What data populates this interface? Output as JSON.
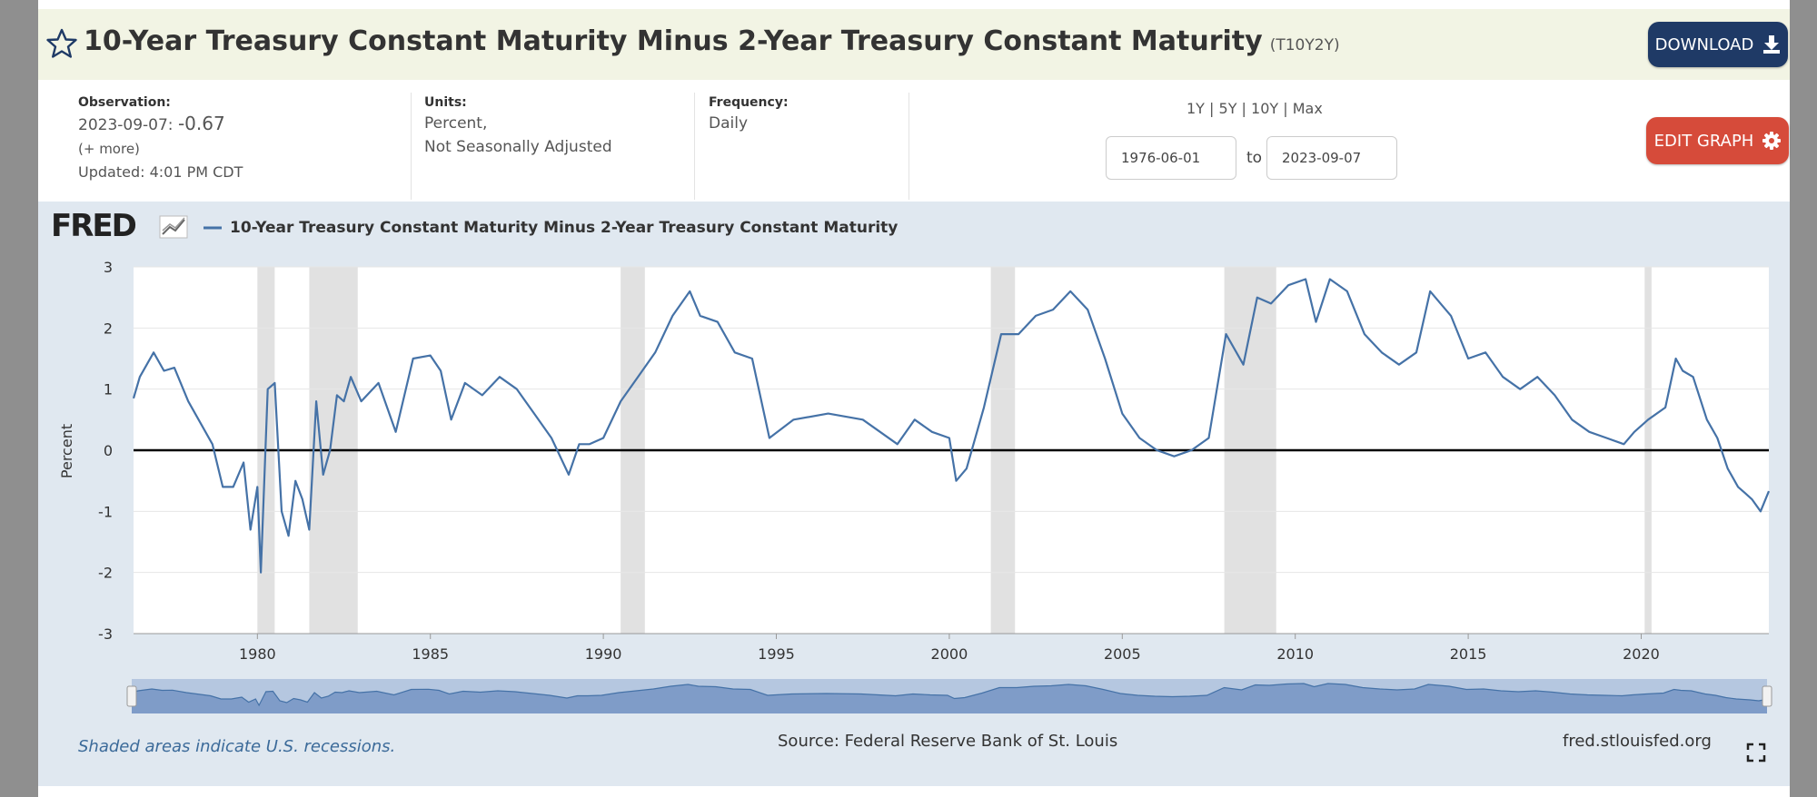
{
  "header": {
    "title": "10-Year Treasury Constant Maturity Minus 2-Year Treasury Constant Maturity",
    "series_id": "(T10Y2Y)",
    "download_label": "DOWNLOAD",
    "edit_label": "EDIT GRAPH"
  },
  "meta": {
    "observation_label": "Observation:",
    "observation_date": "2023-09-07:",
    "observation_value": "-0.67",
    "more_label": "(+ more)",
    "updated": "Updated: 4:01 PM CDT",
    "units_label": "Units:",
    "units_line1": "Percent,",
    "units_line2": "Not Seasonally Adjusted",
    "frequency_label": "Frequency:",
    "frequency_value": "Daily"
  },
  "range": {
    "presets": "1Y | 5Y | 10Y | Max",
    "start": "1976-06-01",
    "to_label": "to",
    "end": "2023-09-07"
  },
  "footer": {
    "note": "Shaded areas indicate U.S. recessions.",
    "source": "Source: Federal Reserve Bank of St. Louis",
    "site": "fred.stlouisfed.org"
  },
  "colors": {
    "line": "#4572a7",
    "recession": "#e1e1e1",
    "download_btn": "#1f3a66",
    "edit_btn": "#d64b3a"
  },
  "chart_data": {
    "type": "line",
    "logo": "FRED",
    "series": [
      {
        "name": "10-Year Treasury Constant Maturity Minus 2-Year Treasury Constant Maturity"
      }
    ],
    "ylabel": "Percent",
    "xlim": [
      1976.42,
      2023.69
    ],
    "ylim": [
      -3,
      3
    ],
    "yticks": [
      3,
      2,
      1,
      0,
      -1,
      -2,
      -3
    ],
    "xticks": [
      1980,
      1985,
      1990,
      1995,
      2000,
      2005,
      2010,
      2015,
      2020
    ],
    "zero_line": true,
    "legend_position": "top-left",
    "recessions": [
      [
        1980.0,
        1980.5
      ],
      [
        1981.5,
        1982.9
      ],
      [
        1990.5,
        1991.2
      ],
      [
        2001.2,
        2001.9
      ],
      [
        2007.95,
        2009.45
      ],
      [
        2020.1,
        2020.3
      ]
    ],
    "x": [
      1976.42,
      1976.6,
      1977.0,
      1977.3,
      1977.6,
      1978.0,
      1978.3,
      1978.7,
      1979.0,
      1979.3,
      1979.6,
      1979.8,
      1980.0,
      1980.1,
      1980.3,
      1980.5,
      1980.7,
      1980.9,
      1981.1,
      1981.3,
      1981.5,
      1981.7,
      1981.9,
      1982.1,
      1982.3,
      1982.5,
      1982.7,
      1983.0,
      1983.5,
      1984.0,
      1984.5,
      1985.0,
      1985.3,
      1985.6,
      1986.0,
      1986.5,
      1987.0,
      1987.5,
      1988.0,
      1988.5,
      1989.0,
      1989.3,
      1989.6,
      1990.0,
      1990.5,
      1991.0,
      1991.5,
      1992.0,
      1992.5,
      1992.8,
      1993.3,
      1993.8,
      1994.3,
      1994.8,
      1995.5,
      1996.5,
      1997.5,
      1998.5,
      1999.0,
      1999.5,
      2000.0,
      2000.2,
      2000.5,
      2001.0,
      2001.5,
      2002.0,
      2002.5,
      2003.0,
      2003.5,
      2004.0,
      2004.5,
      2005.0,
      2005.5,
      2006.0,
      2006.5,
      2007.0,
      2007.5,
      2008.0,
      2008.5,
      2008.9,
      2009.3,
      2009.8,
      2010.3,
      2010.6,
      2011.0,
      2011.5,
      2012.0,
      2012.5,
      2013.0,
      2013.5,
      2013.9,
      2014.5,
      2015.0,
      2015.5,
      2016.0,
      2016.5,
      2017.0,
      2017.5,
      2018.0,
      2018.5,
      2019.0,
      2019.5,
      2019.8,
      2020.2,
      2020.7,
      2021.0,
      2021.2,
      2021.5,
      2021.9,
      2022.2,
      2022.5,
      2022.8,
      2023.0,
      2023.2,
      2023.45,
      2023.69
    ],
    "values": [
      0.85,
      1.2,
      1.6,
      1.3,
      1.35,
      0.8,
      0.5,
      0.1,
      -0.6,
      -0.6,
      -0.2,
      -1.3,
      -0.6,
      -2.0,
      1.0,
      1.1,
      -1.0,
      -1.4,
      -0.5,
      -0.8,
      -1.3,
      0.8,
      -0.4,
      0.0,
      0.9,
      0.8,
      1.2,
      0.8,
      1.1,
      0.3,
      1.5,
      1.55,
      1.3,
      0.5,
      1.1,
      0.9,
      1.2,
      1.0,
      0.6,
      0.2,
      -0.4,
      0.1,
      0.1,
      0.2,
      0.8,
      1.2,
      1.6,
      2.2,
      2.6,
      2.2,
      2.1,
      1.6,
      1.5,
      0.2,
      0.5,
      0.6,
      0.5,
      0.1,
      0.5,
      0.3,
      0.2,
      -0.5,
      -0.3,
      0.7,
      1.9,
      1.9,
      2.2,
      2.3,
      2.6,
      2.3,
      1.5,
      0.6,
      0.2,
      0.0,
      -0.1,
      0.0,
      0.2,
      1.9,
      1.4,
      2.5,
      2.4,
      2.7,
      2.8,
      2.1,
      2.8,
      2.6,
      1.9,
      1.6,
      1.4,
      1.6,
      2.6,
      2.2,
      1.5,
      1.6,
      1.2,
      1.0,
      1.2,
      0.9,
      0.5,
      0.3,
      0.2,
      0.1,
      0.3,
      0.5,
      0.7,
      1.5,
      1.3,
      1.2,
      0.5,
      0.2,
      -0.3,
      -0.6,
      -0.7,
      -0.8,
      -1.0,
      -0.67
    ]
  }
}
